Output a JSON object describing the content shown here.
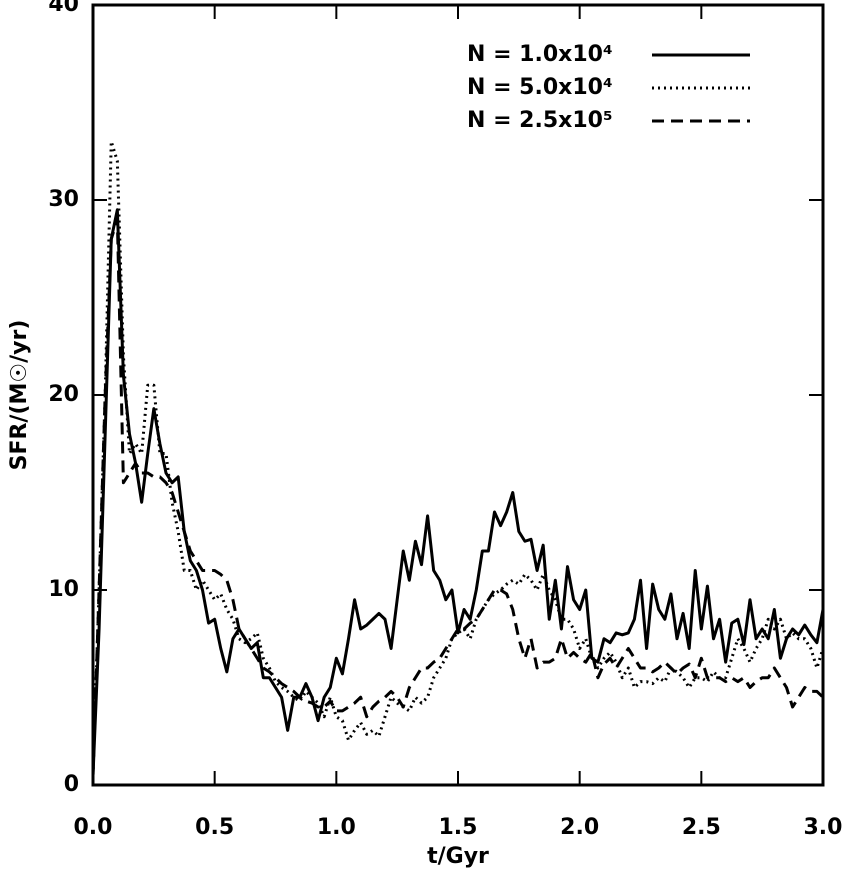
{
  "chart_data": {
    "type": "line",
    "xlabel": "t/Gyr",
    "ylabel": "SFR/(M☉/yr)",
    "x": [
      0,
      0.025,
      0.05,
      0.075,
      0.1,
      0.125,
      0.15,
      0.175,
      0.2,
      0.225,
      0.25,
      0.275,
      0.3,
      0.325,
      0.35,
      0.375,
      0.4,
      0.425,
      0.45,
      0.475,
      0.5,
      0.525,
      0.55,
      0.575,
      0.6,
      0.625,
      0.65,
      0.675,
      0.7,
      0.725,
      0.75,
      0.775,
      0.8,
      0.825,
      0.85,
      0.875,
      0.9,
      0.925,
      0.95,
      0.975,
      1.0,
      1.025,
      1.05,
      1.075,
      1.1,
      1.125,
      1.15,
      1.175,
      1.2,
      1.225,
      1.25,
      1.275,
      1.3,
      1.325,
      1.35,
      1.375,
      1.4,
      1.425,
      1.45,
      1.475,
      1.5,
      1.525,
      1.55,
      1.575,
      1.6,
      1.625,
      1.65,
      1.675,
      1.7,
      1.725,
      1.75,
      1.775,
      1.8,
      1.825,
      1.85,
      1.875,
      1.9,
      1.925,
      1.95,
      1.975,
      2.0,
      2.025,
      2.05,
      2.075,
      2.1,
      2.125,
      2.15,
      2.175,
      2.2,
      2.225,
      2.25,
      2.275,
      2.3,
      2.325,
      2.35,
      2.375,
      2.4,
      2.425,
      2.45,
      2.475,
      2.5,
      2.525,
      2.55,
      2.575,
      2.6,
      2.625,
      2.65,
      2.675,
      2.7,
      2.725,
      2.75,
      2.775,
      2.8,
      2.825,
      2.85,
      2.875,
      2.9,
      2.925,
      2.95,
      2.975,
      3.0
    ],
    "series": [
      {
        "name": "N = 1.0x10⁴",
        "color": "#000000",
        "dash": "solid",
        "values": [
          0.5,
          8,
          18,
          28,
          29.5,
          21,
          18,
          16.5,
          14.5,
          17,
          19.3,
          17.5,
          16,
          15.5,
          15.8,
          13,
          11.5,
          11,
          10,
          8.3,
          8.5,
          7,
          5.8,
          7.5,
          8,
          7.5,
          7,
          7.3,
          5.5,
          5.5,
          5,
          4.5,
          2.8,
          4.5,
          4.5,
          5.2,
          4.5,
          3.3,
          4.5,
          5,
          6.5,
          5.7,
          7.5,
          9.5,
          8,
          8.2,
          8.5,
          8.8,
          8.5,
          7,
          9.5,
          12,
          10.5,
          12.5,
          11.3,
          13.8,
          11,
          10.5,
          9.5,
          10,
          7.8,
          9,
          8.5,
          10,
          12,
          12,
          14,
          13.3,
          14,
          15,
          13,
          12.5,
          12.6,
          11,
          12.3,
          8.5,
          10.5,
          8,
          11.2,
          9.5,
          9,
          10,
          6.5,
          6.3,
          7.5,
          7.3,
          7.8,
          7.7,
          7.8,
          8.5,
          10.5,
          7,
          10.3,
          9,
          8.5,
          9.8,
          7.5,
          8.8,
          7,
          11,
          8,
          10.2,
          7.5,
          8.5,
          6.3,
          8.3,
          8.5,
          7.2,
          9.5,
          7.5,
          8,
          7.5,
          9,
          6.5,
          7.5,
          8,
          7.7,
          8.2,
          7.7,
          7.3,
          9
        ]
      },
      {
        "name": "N = 5.0x10⁴",
        "color": "#000000",
        "dash": "dotted",
        "values": [
          0.5,
          10,
          20,
          33,
          32,
          22,
          17,
          17.5,
          17,
          20.5,
          20.5,
          17,
          17,
          14.5,
          13,
          11,
          11,
          10,
          10.5,
          10,
          9.5,
          9.8,
          9,
          8.5,
          7.5,
          7.3,
          7.5,
          7.8,
          6.5,
          6,
          5.3,
          5,
          4.8,
          4.5,
          4.3,
          4.8,
          4.5,
          4.2,
          3.5,
          4.5,
          3.5,
          3.3,
          2.3,
          2.8,
          3.2,
          2.6,
          2.8,
          2.5,
          3.5,
          4.5,
          4.2,
          4,
          3.8,
          4.5,
          4.2,
          4.5,
          5.5,
          6,
          6.5,
          7.5,
          7.8,
          8,
          7.5,
          8.5,
          9,
          9.5,
          9.8,
          10,
          10.3,
          10.5,
          10.3,
          10.8,
          10.5,
          10,
          10.8,
          10,
          9.5,
          8.5,
          8.5,
          8,
          7,
          7.5,
          6.5,
          6,
          6.5,
          6.8,
          6.3,
          5.5,
          6,
          5,
          5.3,
          5.3,
          5.2,
          5.5,
          5.3,
          6,
          5.8,
          5.5,
          5,
          5.5,
          5.5,
          5.3,
          5.8,
          5.5,
          5.5,
          6.5,
          7.5,
          7,
          6.3,
          7,
          7.5,
          8.5,
          8,
          8.5,
          7.5,
          7.8,
          7.5,
          7.5,
          7,
          6,
          7
        ]
      },
      {
        "name": "N = 2.5x10⁵",
        "color": "#000000",
        "dash": "dashed",
        "values": [
          0.5,
          10,
          20,
          28,
          29,
          15.5,
          16,
          16.5,
          16,
          16,
          15.8,
          15.8,
          15.5,
          15,
          14,
          13,
          12,
          11.5,
          11,
          11,
          11,
          10.8,
          10.5,
          9.5,
          8,
          7.5,
          7,
          6.5,
          6,
          5.8,
          5.5,
          5.2,
          5,
          4.8,
          4.5,
          4.3,
          4.2,
          4,
          4,
          4.3,
          3.8,
          3.8,
          4,
          4.2,
          4.5,
          3.5,
          4,
          4.3,
          4.5,
          4.8,
          4.5,
          4,
          5,
          5.5,
          6,
          6,
          6.3,
          6.5,
          7,
          7.5,
          8,
          8,
          8.3,
          8.5,
          9,
          9.5,
          10,
          10,
          9.8,
          9,
          7.5,
          6.5,
          7.5,
          6,
          6.3,
          6.3,
          6.5,
          7.5,
          6.5,
          6.8,
          6.5,
          6.3,
          6.8,
          5.5,
          6.2,
          6.5,
          6,
          6.5,
          7,
          6.5,
          6,
          6,
          5.8,
          6,
          6.3,
          6,
          5.7,
          6,
          6.2,
          5.5,
          6.5,
          5.5,
          5.5,
          5.5,
          5.3,
          5.5,
          5.3,
          5.5,
          5,
          5.3,
          5.5,
          5.5,
          6,
          5.5,
          5,
          4,
          4.5,
          5,
          4.8,
          4.8,
          4.5
        ]
      }
    ],
    "xlim": [
      0,
      3
    ],
    "ylim": [
      0,
      40
    ],
    "xticks": [
      {
        "value": 0,
        "label": "0.0"
      },
      {
        "value": 0.5,
        "label": "0.5"
      },
      {
        "value": 1,
        "label": "1.0"
      },
      {
        "value": 1.5,
        "label": "1.5"
      },
      {
        "value": 2,
        "label": "2.0"
      },
      {
        "value": 2.5,
        "label": "2.5"
      },
      {
        "value": 3,
        "label": "3.0"
      }
    ],
    "yticks": [
      0,
      10,
      20,
      30,
      40
    ],
    "legend": "upper right"
  }
}
